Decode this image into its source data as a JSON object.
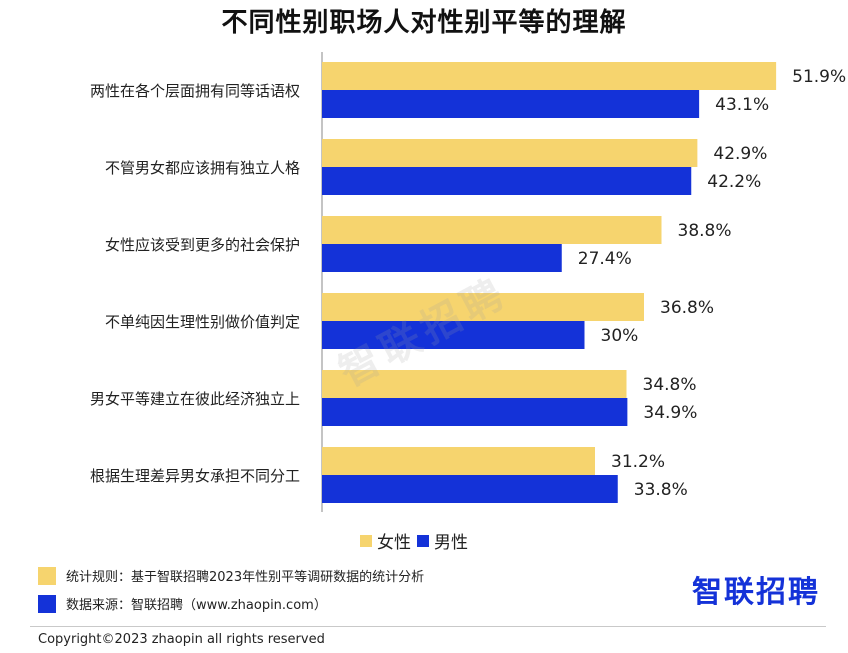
{
  "title": "不同性别职场人对性别平等的理解",
  "colors": {
    "female": "#F6D46E",
    "male": "#1432D8",
    "axis": "#888888"
  },
  "chart_data": {
    "type": "bar",
    "orientation": "horizontal",
    "title": "不同性别职场人对性别平等的理解",
    "categories": [
      "两性在各个层面拥有同等话语权",
      "不管男女都应该拥有独立人格",
      "女性应该受到更多的社会保护",
      "不单纯因生理性别做价值判定",
      "男女平等建立在彼此经济独立上",
      "根据生理差异男女承担不同分工"
    ],
    "series": [
      {
        "name": "女性",
        "values": [
          51.9,
          42.9,
          38.8,
          36.8,
          34.8,
          31.2
        ],
        "labels": [
          "51.9%",
          "42.9%",
          "38.8%",
          "36.8%",
          "34.8%",
          "31.2%"
        ]
      },
      {
        "name": "男性",
        "values": [
          43.1,
          42.2,
          27.4,
          30,
          34.9,
          33.8
        ],
        "labels": [
          "43.1%",
          "42.2%",
          "27.4%",
          "30%",
          "34.9%",
          "33.8%"
        ]
      }
    ],
    "unit": "%",
    "legend_position": "bottom-center"
  },
  "legend": {
    "female": "女性",
    "male": "男性"
  },
  "footnotes": [
    "统计规则：基于智联招聘2023年性别平等调研数据的统计分析",
    "数据来源：智联招聘（www.zhaopin.com）"
  ],
  "logo": "智联招聘",
  "watermark": "智联招聘",
  "copyright": "Copyright©2023 zhaopin all rights reserved"
}
